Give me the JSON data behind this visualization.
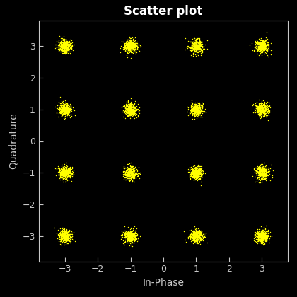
{
  "title": "Scatter plot",
  "xlabel": "In-Phase",
  "ylabel": "Quadrature",
  "background_color": "#000000",
  "text_color": "#c8c8c8",
  "spine_color": "#c8c8c8",
  "marker_color": "#ffff00",
  "constellation_points": [
    [
      -3,
      -3
    ],
    [
      -3,
      -1
    ],
    [
      -3,
      1
    ],
    [
      -3,
      3
    ],
    [
      -1,
      -3
    ],
    [
      -1,
      -1
    ],
    [
      -1,
      1
    ],
    [
      -1,
      3
    ],
    [
      1,
      -3
    ],
    [
      1,
      -1
    ],
    [
      1,
      1
    ],
    [
      1,
      3
    ],
    [
      3,
      -3
    ],
    [
      3,
      -1
    ],
    [
      3,
      1
    ],
    [
      3,
      3
    ]
  ],
  "noise_std": 0.1,
  "n_points_per_cluster": 500,
  "xlim": [
    -3.8,
    3.8
  ],
  "ylim": [
    -3.8,
    3.8
  ],
  "xticks": [
    -3,
    -2,
    -1,
    0,
    1,
    2,
    3
  ],
  "yticks": [
    -3,
    -2,
    -1,
    0,
    1,
    2,
    3
  ],
  "marker_size": 2.0,
  "seed": 42,
  "title_fontsize": 12,
  "label_fontsize": 10,
  "tick_fontsize": 9
}
